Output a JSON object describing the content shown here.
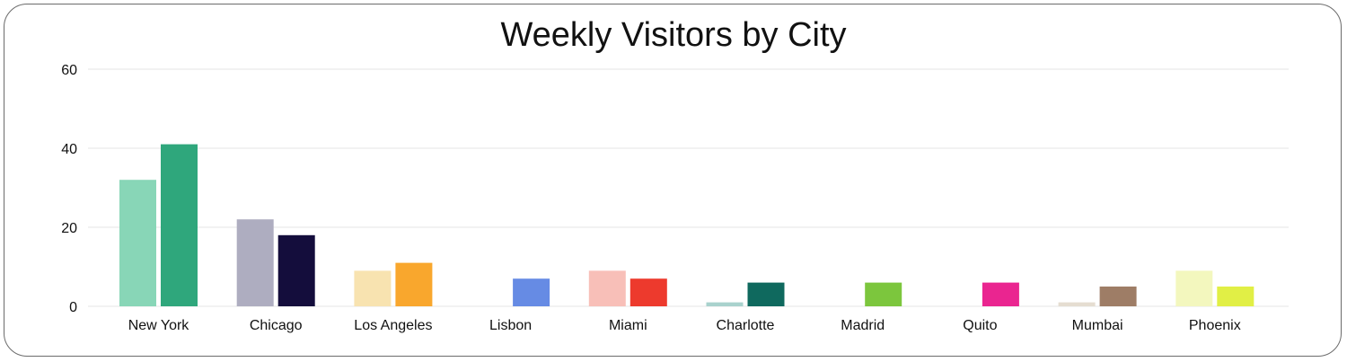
{
  "chart_data": {
    "type": "bar",
    "title": "Weekly Visitors by City",
    "xlabel": "",
    "ylabel": "",
    "ylim": [
      0,
      60
    ],
    "yticks": [
      0,
      20,
      40,
      60
    ],
    "grid": true,
    "categories": [
      "New York",
      "Chicago",
      "Los Angeles",
      "Lisbon",
      "Miami",
      "Charlotte",
      "Madrid",
      "Quito",
      "Mumbai",
      "Phoenix"
    ],
    "series": [
      {
        "name": "series-1",
        "values": [
          32,
          22,
          9,
          0,
          9,
          1,
          0,
          0,
          1,
          9
        ]
      },
      {
        "name": "series-2",
        "values": [
          41,
          18,
          11,
          7,
          7,
          6,
          6,
          6,
          5,
          5
        ]
      }
    ],
    "colors": [
      [
        "#88d6b7",
        "#2fa77c"
      ],
      [
        "#aeadc0",
        "#140d3c"
      ],
      [
        "#f8e3b0",
        "#f9a72d"
      ],
      [
        "#c9d6f6",
        "#668be4"
      ],
      [
        "#f8bfb8",
        "#ed3a2d"
      ],
      [
        "#a9d2cd",
        "#0f695e"
      ],
      [
        "#cfe9b3",
        "#7cc63d"
      ],
      [
        "#f7bde0",
        "#ea2590"
      ],
      [
        "#e5ddd1",
        "#9e7d66"
      ],
      [
        "#f3f7be",
        "#e1ef45"
      ]
    ]
  }
}
